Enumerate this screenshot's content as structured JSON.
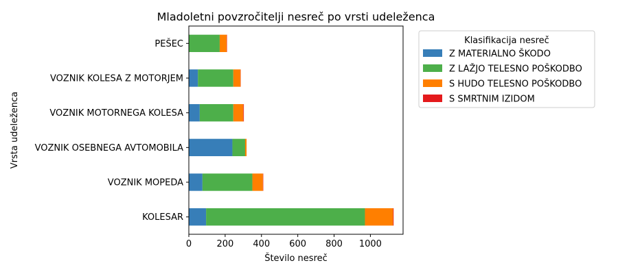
{
  "chart_data": {
    "type": "bar",
    "orientation": "horizontal",
    "stacked": true,
    "title": "Mladoletni povzročitelji nesreč po vrsti udeleženca",
    "xlabel": "Število nesreč",
    "ylabel": "Vrsta udeleženca",
    "xlim": [
      0,
      1180
    ],
    "xticks": [
      "0",
      "200",
      "400",
      "600",
      "800",
      "1000"
    ],
    "grid": false,
    "legend_title": "Klasifikacija nesreč",
    "legend_position": "outside-top-right",
    "categories": [
      "PEŠEC",
      "VOZNIK KOLESA Z MOTORJEM",
      "VOZNIK MOTORNEGA KOLESA",
      "VOZNIK OSEBNEGA AVTOMOBILA",
      "VOZNIK MOPEDA",
      "KOLESAR"
    ],
    "series": [
      {
        "name": "Z MATERIALNO ŠKODO",
        "color": "#377eb8",
        "values": [
          0,
          50,
          60,
          240,
          75,
          95
        ]
      },
      {
        "name": "Z LAŽJO TELESNO POŠKODBO",
        "color": "#4daf4a",
        "values": [
          170,
          195,
          185,
          70,
          275,
          875
        ]
      },
      {
        "name": "S HUDO TELESNO POŠKODBO",
        "color": "#ff7f00",
        "values": [
          38,
          40,
          55,
          8,
          58,
          155
        ]
      },
      {
        "name": "S SMRTNIM IZIDOM",
        "color": "#e41a1c",
        "values": [
          2,
          1,
          3,
          0,
          2,
          3
        ]
      }
    ]
  }
}
